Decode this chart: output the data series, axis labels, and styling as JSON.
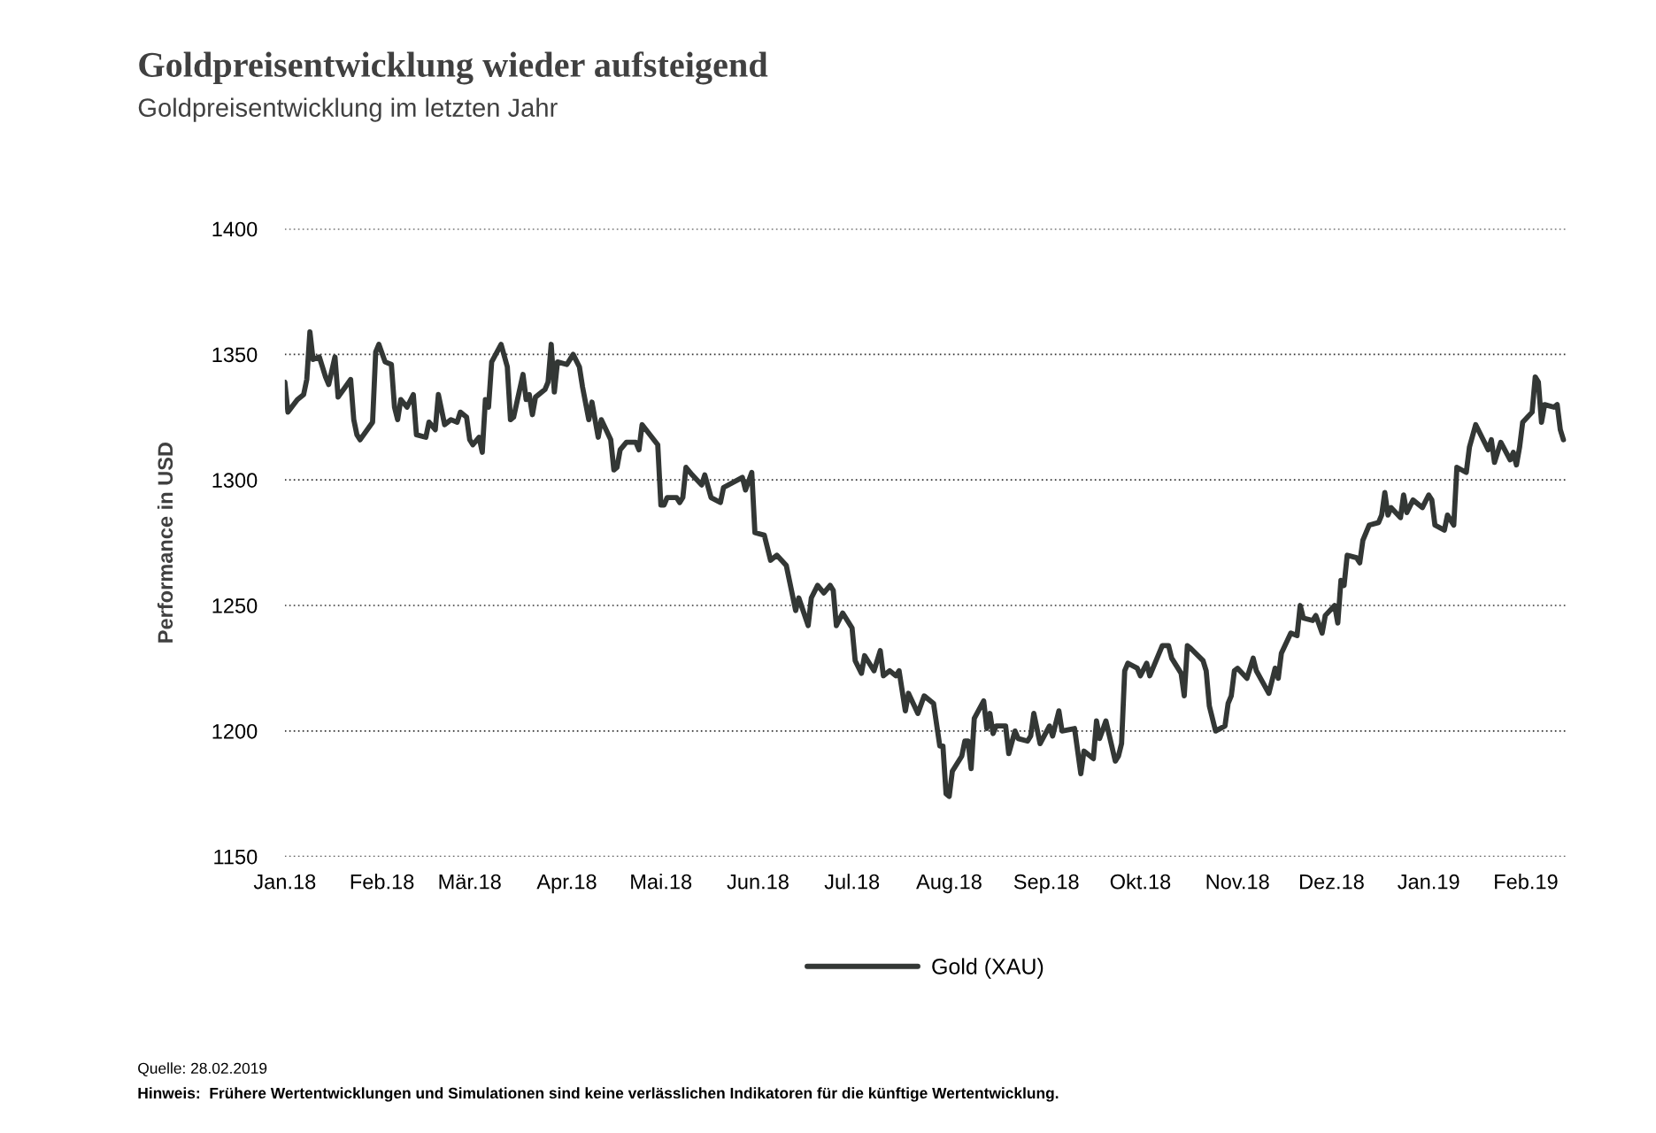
{
  "chart_data": {
    "type": "line",
    "title": "Goldpreisentwicklung wieder aufsteigend",
    "subtitle": "Goldpreisentwicklung im letzten Jahr",
    "ylabel": "Performance in USD",
    "annotations": [
      "Quelle: 28.02.2019",
      "Hinweis:  Frühere Wertentwicklungen und Simulationen sind keine verlässlichen Indikatoren für die künftige Wertentwicklung."
    ],
    "xlim": [
      "2018-01-01",
      "2019-02-14"
    ],
    "xticks": [
      {
        "value": "2018-01-01",
        "label": "Jan.18"
      },
      {
        "value": "2018-02-01",
        "label": "Feb.18"
      },
      {
        "value": "2018-03-01",
        "label": "Mär.18"
      },
      {
        "value": "2018-04-01",
        "label": "Apr.18"
      },
      {
        "value": "2018-05-01",
        "label": "Mai.18"
      },
      {
        "value": "2018-06-01",
        "label": "Jun.18"
      },
      {
        "value": "2018-07-01",
        "label": "Jul.18"
      },
      {
        "value": "2018-08-01",
        "label": "Aug.18"
      },
      {
        "value": "2018-09-01",
        "label": "Sep.18"
      },
      {
        "value": "2018-10-01",
        "label": "Okt.18"
      },
      {
        "value": "2018-11-01",
        "label": "Nov.18"
      },
      {
        "value": "2018-12-01",
        "label": "Dez.18"
      },
      {
        "value": "2019-01-01",
        "label": "Jan.19"
      },
      {
        "value": "2019-02-01",
        "label": "Feb.19"
      }
    ],
    "ylim": [
      1150,
      1400
    ],
    "yticks": [
      1150,
      1200,
      1250,
      1300,
      1350,
      1400
    ],
    "grid": "y",
    "legend": "bottom",
    "marker": "none",
    "line_style": "solid",
    "series": [
      {
        "name": "Gold (XAU)",
        "color": "#333735",
        "x": [
          "2018-01-01",
          "2018-01-02",
          "2018-01-05",
          "2018-01-07",
          "2018-01-08",
          "2018-01-09",
          "2018-01-10",
          "2018-01-12",
          "2018-01-14",
          "2018-01-15",
          "2018-01-17",
          "2018-01-18",
          "2018-01-22",
          "2018-01-23",
          "2018-01-24",
          "2018-01-25",
          "2018-01-29",
          "2018-01-30",
          "2018-01-31",
          "2018-02-02",
          "2018-02-04",
          "2018-02-05",
          "2018-02-06",
          "2018-02-07",
          "2018-02-09",
          "2018-02-11",
          "2018-02-12",
          "2018-02-15",
          "2018-02-16",
          "2018-02-18",
          "2018-02-19",
          "2018-02-21",
          "2018-02-23",
          "2018-02-25",
          "2018-02-26",
          "2018-02-28",
          "2018-03-01",
          "2018-03-02",
          "2018-03-04",
          "2018-03-05",
          "2018-03-06",
          "2018-03-07",
          "2018-03-08",
          "2018-03-11",
          "2018-03-13",
          "2018-03-14",
          "2018-03-15",
          "2018-03-18",
          "2018-03-19",
          "2018-03-20",
          "2018-03-21",
          "2018-03-22",
          "2018-03-25",
          "2018-03-26",
          "2018-03-27",
          "2018-03-28",
          "2018-03-29",
          "2018-04-01",
          "2018-04-03",
          "2018-04-05",
          "2018-04-06",
          "2018-04-08",
          "2018-04-09",
          "2018-04-11",
          "2018-04-12",
          "2018-04-15",
          "2018-04-16",
          "2018-04-17",
          "2018-04-18",
          "2018-04-20",
          "2018-04-23",
          "2018-04-24",
          "2018-04-25",
          "2018-04-30",
          "2018-05-01",
          "2018-05-02",
          "2018-05-03",
          "2018-05-06",
          "2018-05-07",
          "2018-05-08",
          "2018-05-09",
          "2018-05-11",
          "2018-05-14",
          "2018-05-15",
          "2018-05-17",
          "2018-05-20",
          "2018-05-21",
          "2018-05-27",
          "2018-05-28",
          "2018-05-30",
          "2018-05-31",
          "2018-06-03",
          "2018-06-05",
          "2018-06-07",
          "2018-06-10",
          "2018-06-13",
          "2018-06-14",
          "2018-06-17",
          "2018-06-18",
          "2018-06-20",
          "2018-06-22",
          "2018-06-24",
          "2018-06-25",
          "2018-06-26",
          "2018-06-28",
          "2018-07-01",
          "2018-07-02",
          "2018-07-04",
          "2018-07-05",
          "2018-07-08",
          "2018-07-10",
          "2018-07-11",
          "2018-07-13",
          "2018-07-15",
          "2018-07-16",
          "2018-07-18",
          "2018-07-19",
          "2018-07-22",
          "2018-07-24",
          "2018-07-27",
          "2018-07-29",
          "2018-07-30",
          "2018-07-31",
          "2018-08-01",
          "2018-08-02",
          "2018-08-05",
          "2018-08-06",
          "2018-08-07",
          "2018-08-08",
          "2018-08-09",
          "2018-08-12",
          "2018-08-13",
          "2018-08-14",
          "2018-08-15",
          "2018-08-16",
          "2018-08-19",
          "2018-08-20",
          "2018-08-22",
          "2018-08-23",
          "2018-08-26",
          "2018-08-27",
          "2018-08-28",
          "2018-08-30",
          "2018-09-02",
          "2018-09-03",
          "2018-09-05",
          "2018-09-06",
          "2018-09-10",
          "2018-09-12",
          "2018-09-13",
          "2018-09-16",
          "2018-09-17",
          "2018-09-18",
          "2018-09-20",
          "2018-09-23",
          "2018-09-24",
          "2018-09-25",
          "2018-09-26",
          "2018-09-27",
          "2018-09-30",
          "2018-10-01",
          "2018-10-03",
          "2018-10-04",
          "2018-10-08",
          "2018-10-10",
          "2018-10-11",
          "2018-10-14",
          "2018-10-15",
          "2018-10-16",
          "2018-10-17",
          "2018-10-21",
          "2018-10-22",
          "2018-10-23",
          "2018-10-25",
          "2018-10-28",
          "2018-10-29",
          "2018-10-30",
          "2018-10-31",
          "2018-11-01",
          "2018-11-04",
          "2018-11-06",
          "2018-11-07",
          "2018-11-11",
          "2018-11-13",
          "2018-11-14",
          "2018-11-15",
          "2018-11-18",
          "2018-11-20",
          "2018-11-21",
          "2018-11-22",
          "2018-11-25",
          "2018-11-26",
          "2018-11-28",
          "2018-11-29",
          "2018-12-02",
          "2018-12-03",
          "2018-12-04",
          "2018-12-05",
          "2018-12-06",
          "2018-12-09",
          "2018-12-10",
          "2018-12-11",
          "2018-12-13",
          "2018-12-16",
          "2018-12-17",
          "2018-12-18",
          "2018-12-19",
          "2018-12-20",
          "2018-12-23",
          "2018-12-24",
          "2018-12-25",
          "2018-12-27",
          "2018-12-30",
          "2019-01-01",
          "2019-01-02",
          "2019-01-03",
          "2019-01-06",
          "2019-01-07",
          "2019-01-09",
          "2019-01-10",
          "2019-01-13",
          "2019-01-14",
          "2019-01-16",
          "2019-01-18",
          "2019-01-20",
          "2019-01-21",
          "2019-01-22",
          "2019-01-24",
          "2019-01-27",
          "2019-01-28",
          "2019-01-29",
          "2019-01-30",
          "2019-01-31",
          "2019-02-03",
          "2019-02-04",
          "2019-02-05",
          "2019-02-06",
          "2019-02-07",
          "2019-02-10",
          "2019-02-11",
          "2019-02-12",
          "2019-02-13"
        ],
        "values": [
          1339,
          1327,
          1332,
          1334,
          1340,
          1359,
          1348,
          1349,
          1341,
          1338,
          1349,
          1333,
          1340,
          1324,
          1318,
          1316,
          1323,
          1351,
          1354,
          1347,
          1346,
          1329,
          1324,
          1332,
          1329,
          1334,
          1318,
          1317,
          1323,
          1320,
          1334,
          1322,
          1324,
          1323,
          1327,
          1325,
          1316,
          1314,
          1317,
          1311,
          1332,
          1329,
          1347,
          1354,
          1345,
          1324,
          1325,
          1342,
          1332,
          1334,
          1326,
          1333,
          1336,
          1339,
          1354,
          1335,
          1347,
          1346,
          1350,
          1345,
          1337,
          1324,
          1331,
          1317,
          1324,
          1316,
          1304,
          1305,
          1312,
          1315,
          1315,
          1312,
          1322,
          1314,
          1290,
          1290,
          1293,
          1293,
          1291,
          1293,
          1305,
          1302,
          1298,
          1302,
          1293,
          1291,
          1297,
          1301,
          1296,
          1303,
          1279,
          1278,
          1268,
          1270,
          1266,
          1248,
          1253,
          1242,
          1253,
          1258,
          1255,
          1258,
          1256,
          1242,
          1247,
          1241,
          1228,
          1223,
          1230,
          1224,
          1232,
          1222,
          1224,
          1222,
          1224,
          1208,
          1215,
          1207,
          1214,
          1211,
          1194,
          1194,
          1175,
          1174,
          1184,
          1190,
          1196,
          1196,
          1185,
          1205,
          1212,
          1201,
          1207,
          1199,
          1202,
          1202,
          1191,
          1200,
          1197,
          1196,
          1198,
          1207,
          1195,
          1202,
          1198,
          1208,
          1200,
          1201,
          1183,
          1192,
          1189,
          1204,
          1197,
          1204,
          1188,
          1190,
          1195,
          1224,
          1227,
          1225,
          1222,
          1227,
          1222,
          1234,
          1234,
          1229,
          1223,
          1214,
          1234,
          1233,
          1228,
          1224,
          1210,
          1200,
          1202,
          1211,
          1214,
          1224,
          1225,
          1221,
          1229,
          1224,
          1215,
          1225,
          1221,
          1231,
          1239,
          1238,
          1250,
          1245,
          1244,
          1246,
          1239,
          1246,
          1250,
          1243,
          1260,
          1258,
          1270,
          1269,
          1267,
          1276,
          1282,
          1283,
          1286,
          1295,
          1286,
          1289,
          1285,
          1294,
          1287,
          1292,
          1289,
          1294,
          1292,
          1282,
          1280,
          1286,
          1282,
          1305,
          1303,
          1313,
          1322,
          1317,
          1312,
          1316,
          1307,
          1315,
          1308,
          1311,
          1306,
          1313,
          1323,
          1327,
          1341,
          1339,
          1323,
          1330,
          1329,
          1330,
          1320,
          1316
        ]
      }
    ]
  }
}
